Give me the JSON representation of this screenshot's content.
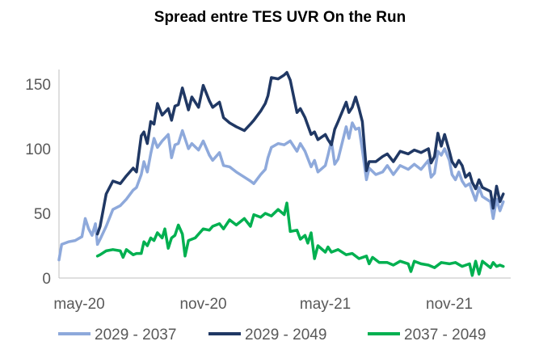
{
  "chart_data": {
    "type": "line",
    "title": "Spread entre TES UVR On the Run",
    "xlabel": "",
    "ylabel": "",
    "x_ticks": [
      "may-20",
      "nov-20",
      "may-21",
      "nov-21"
    ],
    "y_ticks": [
      0,
      50,
      100,
      150
    ],
    "xlim": [
      "2020-04-01",
      "2022-01-31"
    ],
    "ylim": [
      0,
      160
    ],
    "grid": false,
    "legend_position": "bottom",
    "series": [
      {
        "name": "2029 - 2037",
        "color": "#8EA9DB",
        "points": [
          [
            "2020-04-01",
            14
          ],
          [
            "2020-04-05",
            26
          ],
          [
            "2020-04-15",
            28
          ],
          [
            "2020-04-25",
            29
          ],
          [
            "2020-05-05",
            32
          ],
          [
            "2020-05-10",
            46
          ],
          [
            "2020-05-15",
            38
          ],
          [
            "2020-05-20",
            33
          ],
          [
            "2020-05-25",
            42
          ],
          [
            "2020-05-28",
            26
          ],
          [
            "2020-06-01",
            30
          ],
          [
            "2020-06-10",
            40
          ],
          [
            "2020-06-20",
            53
          ],
          [
            "2020-07-01",
            56
          ],
          [
            "2020-07-10",
            61
          ],
          [
            "2020-07-20",
            68
          ],
          [
            "2020-07-25",
            70
          ],
          [
            "2020-08-01",
            80
          ],
          [
            "2020-08-05",
            90
          ],
          [
            "2020-08-10",
            82
          ],
          [
            "2020-08-15",
            96
          ],
          [
            "2020-08-20",
            108
          ],
          [
            "2020-08-25",
            101
          ],
          [
            "2020-09-01",
            106
          ],
          [
            "2020-09-10",
            111
          ],
          [
            "2020-09-15",
            93
          ],
          [
            "2020-09-20",
            103
          ],
          [
            "2020-09-25",
            104
          ],
          [
            "2020-10-01",
            114
          ],
          [
            "2020-10-10",
            100
          ],
          [
            "2020-10-15",
            104
          ],
          [
            "2020-10-25",
            99
          ],
          [
            "2020-11-01",
            106
          ],
          [
            "2020-11-10",
            95
          ],
          [
            "2020-11-15",
            91
          ],
          [
            "2020-11-25",
            97
          ],
          [
            "2020-12-01",
            87
          ],
          [
            "2020-12-10",
            86
          ],
          [
            "2020-12-20",
            82
          ],
          [
            "2021-01-01",
            78
          ],
          [
            "2021-01-10",
            75
          ],
          [
            "2021-01-15",
            73
          ],
          [
            "2021-01-25",
            80
          ],
          [
            "2021-02-01",
            84
          ],
          [
            "2021-02-05",
            93
          ],
          [
            "2021-02-10",
            101
          ],
          [
            "2021-02-20",
            104
          ],
          [
            "2021-03-01",
            103
          ],
          [
            "2021-03-10",
            106
          ],
          [
            "2021-03-20",
            98
          ],
          [
            "2021-03-25",
            104
          ],
          [
            "2021-04-01",
            98
          ],
          [
            "2021-04-10",
            86
          ],
          [
            "2021-04-15",
            91
          ],
          [
            "2021-04-20",
            82
          ],
          [
            "2021-05-01",
            87
          ],
          [
            "2021-05-05",
            95
          ],
          [
            "2021-05-10",
            106
          ],
          [
            "2021-05-15",
            88
          ],
          [
            "2021-05-20",
            92
          ],
          [
            "2021-06-01",
            117
          ],
          [
            "2021-06-05",
            108
          ],
          [
            "2021-06-10",
            120
          ],
          [
            "2021-06-15",
            115
          ],
          [
            "2021-06-20",
            116
          ],
          [
            "2021-06-25",
            99
          ],
          [
            "2021-07-01",
            76
          ],
          [
            "2021-07-05",
            85
          ],
          [
            "2021-07-15",
            80
          ],
          [
            "2021-07-25",
            82
          ],
          [
            "2021-08-01",
            87
          ],
          [
            "2021-08-10",
            80
          ],
          [
            "2021-08-20",
            87
          ],
          [
            "2021-09-01",
            84
          ],
          [
            "2021-09-10",
            88
          ],
          [
            "2021-09-20",
            84
          ],
          [
            "2021-10-01",
            91
          ],
          [
            "2021-10-05",
            78
          ],
          [
            "2021-10-10",
            81
          ],
          [
            "2021-10-15",
            98
          ],
          [
            "2021-10-20",
            95
          ],
          [
            "2021-10-25",
            100
          ],
          [
            "2021-11-01",
            91
          ],
          [
            "2021-11-05",
            80
          ],
          [
            "2021-11-10",
            76
          ],
          [
            "2021-11-15",
            82
          ],
          [
            "2021-11-20",
            75
          ],
          [
            "2021-11-25",
            71
          ],
          [
            "2021-12-01",
            73
          ],
          [
            "2021-12-05",
            67
          ],
          [
            "2021-12-10",
            60
          ],
          [
            "2021-12-15",
            70
          ],
          [
            "2021-12-20",
            63
          ],
          [
            "2022-01-01",
            59
          ],
          [
            "2022-01-05",
            46
          ],
          [
            "2022-01-10",
            61
          ],
          [
            "2022-01-15",
            52
          ],
          [
            "2022-01-20",
            59
          ]
        ]
      },
      {
        "name": "2029 - 2049",
        "color": "#203864",
        "points": [
          [
            "2020-05-28",
            34
          ],
          [
            "2020-06-01",
            40
          ],
          [
            "2020-06-10",
            65
          ],
          [
            "2020-06-20",
            75
          ],
          [
            "2020-07-01",
            73
          ],
          [
            "2020-07-10",
            79
          ],
          [
            "2020-07-20",
            85
          ],
          [
            "2020-07-25",
            82
          ],
          [
            "2020-08-01",
            110
          ],
          [
            "2020-08-05",
            113
          ],
          [
            "2020-08-10",
            104
          ],
          [
            "2020-08-15",
            121
          ],
          [
            "2020-08-20",
            119
          ],
          [
            "2020-08-25",
            135
          ],
          [
            "2020-09-01",
            126
          ],
          [
            "2020-09-10",
            131
          ],
          [
            "2020-09-15",
            122
          ],
          [
            "2020-09-20",
            133
          ],
          [
            "2020-09-25",
            134
          ],
          [
            "2020-10-01",
            147
          ],
          [
            "2020-10-10",
            130
          ],
          [
            "2020-10-15",
            140
          ],
          [
            "2020-10-25",
            132
          ],
          [
            "2020-11-01",
            149
          ],
          [
            "2020-11-10",
            137
          ],
          [
            "2020-11-15",
            132
          ],
          [
            "2020-11-25",
            136
          ],
          [
            "2020-12-01",
            124
          ],
          [
            "2020-12-10",
            120
          ],
          [
            "2020-12-20",
            117
          ],
          [
            "2021-01-01",
            114
          ],
          [
            "2021-01-10",
            119
          ],
          [
            "2021-01-15",
            122
          ],
          [
            "2021-01-25",
            129
          ],
          [
            "2021-02-01",
            135
          ],
          [
            "2021-02-05",
            141
          ],
          [
            "2021-02-10",
            155
          ],
          [
            "2021-02-20",
            154
          ],
          [
            "2021-03-01",
            157
          ],
          [
            "2021-03-05",
            159
          ],
          [
            "2021-03-10",
            153
          ],
          [
            "2021-03-20",
            128
          ],
          [
            "2021-03-25",
            131
          ],
          [
            "2021-04-01",
            124
          ],
          [
            "2021-04-10",
            111
          ],
          [
            "2021-04-15",
            113
          ],
          [
            "2021-04-20",
            107
          ],
          [
            "2021-05-01",
            111
          ],
          [
            "2021-05-05",
            107
          ],
          [
            "2021-05-10",
            103
          ],
          [
            "2021-05-15",
            115
          ],
          [
            "2021-05-20",
            121
          ],
          [
            "2021-06-01",
            136
          ],
          [
            "2021-06-05",
            128
          ],
          [
            "2021-06-10",
            132
          ],
          [
            "2021-06-15",
            140
          ],
          [
            "2021-06-20",
            131
          ],
          [
            "2021-06-25",
            121
          ],
          [
            "2021-07-01",
            83
          ],
          [
            "2021-07-05",
            90
          ],
          [
            "2021-07-15",
            90
          ],
          [
            "2021-07-25",
            94
          ],
          [
            "2021-08-01",
            96
          ],
          [
            "2021-08-10",
            90
          ],
          [
            "2021-08-20",
            98
          ],
          [
            "2021-09-01",
            96
          ],
          [
            "2021-09-10",
            99
          ],
          [
            "2021-09-20",
            97
          ],
          [
            "2021-10-01",
            100
          ],
          [
            "2021-10-05",
            89
          ],
          [
            "2021-10-10",
            94
          ],
          [
            "2021-10-15",
            112
          ],
          [
            "2021-10-20",
            102
          ],
          [
            "2021-10-25",
            111
          ],
          [
            "2021-11-01",
            98
          ],
          [
            "2021-11-05",
            90
          ],
          [
            "2021-11-10",
            86
          ],
          [
            "2021-11-15",
            91
          ],
          [
            "2021-11-20",
            87
          ],
          [
            "2021-11-25",
            78
          ],
          [
            "2021-12-01",
            81
          ],
          [
            "2021-12-05",
            74
          ],
          [
            "2021-12-10",
            69
          ],
          [
            "2021-12-15",
            76
          ],
          [
            "2021-12-20",
            70
          ],
          [
            "2022-01-01",
            67
          ],
          [
            "2022-01-05",
            54
          ],
          [
            "2022-01-10",
            71
          ],
          [
            "2022-01-15",
            59
          ],
          [
            "2022-01-20",
            65
          ]
        ]
      },
      {
        "name": "2037 - 2049",
        "color": "#00B050",
        "points": [
          [
            "2020-05-28",
            17
          ],
          [
            "2020-06-01",
            18
          ],
          [
            "2020-06-10",
            21
          ],
          [
            "2020-06-20",
            22
          ],
          [
            "2020-07-01",
            21
          ],
          [
            "2020-07-05",
            16
          ],
          [
            "2020-07-10",
            22
          ],
          [
            "2020-07-20",
            18
          ],
          [
            "2020-07-25",
            19
          ],
          [
            "2020-08-01",
            19
          ],
          [
            "2020-08-05",
            28
          ],
          [
            "2020-08-10",
            25
          ],
          [
            "2020-08-15",
            31
          ],
          [
            "2020-08-20",
            29
          ],
          [
            "2020-08-25",
            35
          ],
          [
            "2020-09-01",
            31
          ],
          [
            "2020-09-05",
            38
          ],
          [
            "2020-09-10",
            23
          ],
          [
            "2020-09-15",
            31
          ],
          [
            "2020-09-20",
            33
          ],
          [
            "2020-09-25",
            41
          ],
          [
            "2020-10-01",
            34
          ],
          [
            "2020-10-05",
            17
          ],
          [
            "2020-10-10",
            29
          ],
          [
            "2020-10-20",
            31
          ],
          [
            "2020-11-01",
            38
          ],
          [
            "2020-11-10",
            37
          ],
          [
            "2020-11-15",
            40
          ],
          [
            "2020-11-25",
            42
          ],
          [
            "2020-12-01",
            38
          ],
          [
            "2020-12-10",
            45
          ],
          [
            "2020-12-20",
            41
          ],
          [
            "2021-01-01",
            46
          ],
          [
            "2021-01-10",
            40
          ],
          [
            "2021-01-15",
            49
          ],
          [
            "2021-01-25",
            47
          ],
          [
            "2021-02-01",
            50
          ],
          [
            "2021-02-10",
            48
          ],
          [
            "2021-02-20",
            53
          ],
          [
            "2021-03-01",
            49
          ],
          [
            "2021-03-05",
            58
          ],
          [
            "2021-03-10",
            36
          ],
          [
            "2021-03-20",
            37
          ],
          [
            "2021-03-25",
            30
          ],
          [
            "2021-04-01",
            33
          ],
          [
            "2021-04-05",
            27
          ],
          [
            "2021-04-10",
            35
          ],
          [
            "2021-04-15",
            15
          ],
          [
            "2021-04-20",
            25
          ],
          [
            "2021-05-01",
            20
          ],
          [
            "2021-05-05",
            24
          ],
          [
            "2021-05-10",
            20
          ],
          [
            "2021-05-20",
            22
          ],
          [
            "2021-06-01",
            18
          ],
          [
            "2021-06-10",
            19
          ],
          [
            "2021-06-20",
            15
          ],
          [
            "2021-07-01",
            17
          ],
          [
            "2021-07-05",
            11
          ],
          [
            "2021-07-10",
            16
          ],
          [
            "2021-07-20",
            12
          ],
          [
            "2021-08-01",
            12
          ],
          [
            "2021-08-10",
            10
          ],
          [
            "2021-08-20",
            13
          ],
          [
            "2021-09-01",
            11
          ],
          [
            "2021-09-05",
            5
          ],
          [
            "2021-09-10",
            13
          ],
          [
            "2021-09-20",
            11
          ],
          [
            "2021-10-01",
            10
          ],
          [
            "2021-10-10",
            8
          ],
          [
            "2021-10-20",
            12
          ],
          [
            "2021-11-01",
            11
          ],
          [
            "2021-11-10",
            12
          ],
          [
            "2021-11-20",
            9
          ],
          [
            "2021-12-01",
            11
          ],
          [
            "2021-12-05",
            2
          ],
          [
            "2021-12-10",
            13
          ],
          [
            "2021-12-15",
            3
          ],
          [
            "2021-12-20",
            13
          ],
          [
            "2022-01-01",
            8
          ],
          [
            "2022-01-05",
            12
          ],
          [
            "2022-01-10",
            9
          ],
          [
            "2022-01-15",
            10
          ],
          [
            "2022-01-20",
            9
          ]
        ]
      }
    ]
  }
}
